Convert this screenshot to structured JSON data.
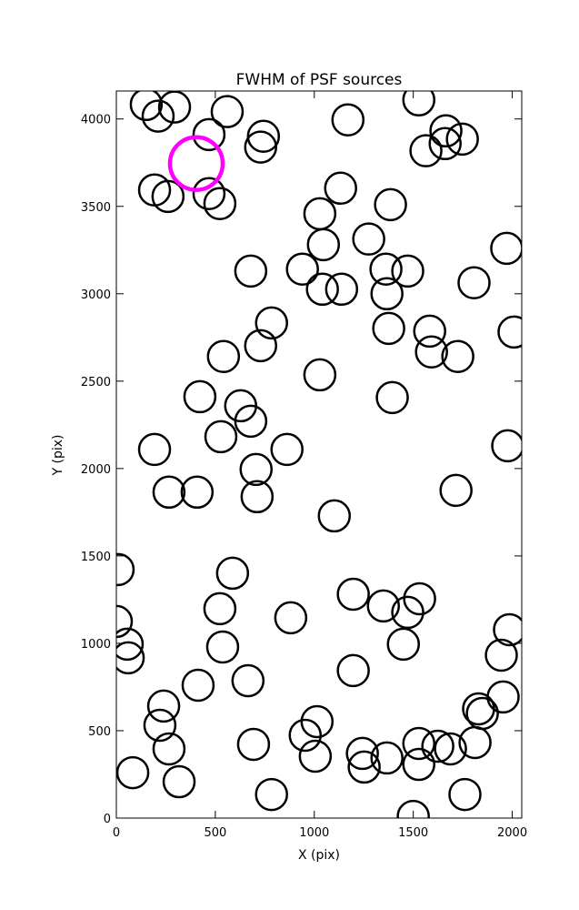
{
  "chart_data": {
    "type": "scatter",
    "title": "FWHM of PSF sources",
    "x_label": "X (pix)",
    "y_label": "Y (pix)",
    "x": [
      151,
      294,
      211,
      560,
      468,
      743,
      729,
      1170,
      1528,
      1665,
      1564,
      1661,
      1748,
      193,
      261,
      468,
      523,
      1028,
      1133,
      1385,
      1972,
      679,
      940,
      1046,
      1041,
      1138,
      1275,
      1362,
      1472,
      1367,
      1807,
      784,
      729,
      541,
      1376,
      1583,
      1592,
      1725,
      2009,
      1028,
      422,
      628,
      679,
      528,
      1394,
      193,
      706,
      862,
      266,
      408,
      711,
      1977,
      1716,
      1101,
      9,
      587,
      0,
      55,
      60,
      523,
      537,
      1197,
      1349,
      1472,
      1532,
      1450,
      881,
      1986,
      1945,
      413,
      665,
      1197,
      239,
      220,
      266,
      693,
      317,
      83,
      784,
      954,
      1014,
      1005,
      1243,
      1252,
      1367,
      1528,
      1528,
      1624,
      1688,
      1812,
      1830,
      1849,
      1954,
      1761,
      1500
    ],
    "y": [
      4083,
      4068,
      4016,
      4042,
      3911,
      3901,
      3839,
      3995,
      4109,
      3932,
      3818,
      3859,
      3885,
      3594,
      3557,
      3573,
      3516,
      3458,
      3604,
      3510,
      3260,
      3130,
      3141,
      3281,
      3026,
      3026,
      3313,
      3141,
      3130,
      3000,
      3063,
      2833,
      2703,
      2641,
      2802,
      2786,
      2667,
      2641,
      2781,
      2536,
      2411,
      2359,
      2271,
      2182,
      2406,
      2109,
      1995,
      2109,
      1865,
      1865,
      1839,
      2130,
      1875,
      1729,
      1422,
      1401,
      1125,
      995,
      917,
      1198,
      979,
      1281,
      1214,
      1177,
      1255,
      995,
      1146,
      1078,
      932,
      760,
      786,
      844,
      641,
      531,
      396,
      422,
      208,
      260,
      135,
      474,
      552,
      354,
      370,
      292,
      344,
      427,
      307,
      411,
      396,
      432,
      625,
      599,
      693,
      135,
      10
    ],
    "color": "#000000",
    "highlight": {
      "x": 404,
      "y": 3745,
      "color": "#ff00ff"
    },
    "xlim": [
      0,
      2048
    ],
    "ylim": [
      0,
      4160
    ],
    "xticks": [
      0,
      500,
      1000,
      1500,
      2000
    ],
    "yticks": [
      0,
      500,
      1000,
      1500,
      2000,
      2500,
      3000,
      3500,
      4000
    ]
  }
}
